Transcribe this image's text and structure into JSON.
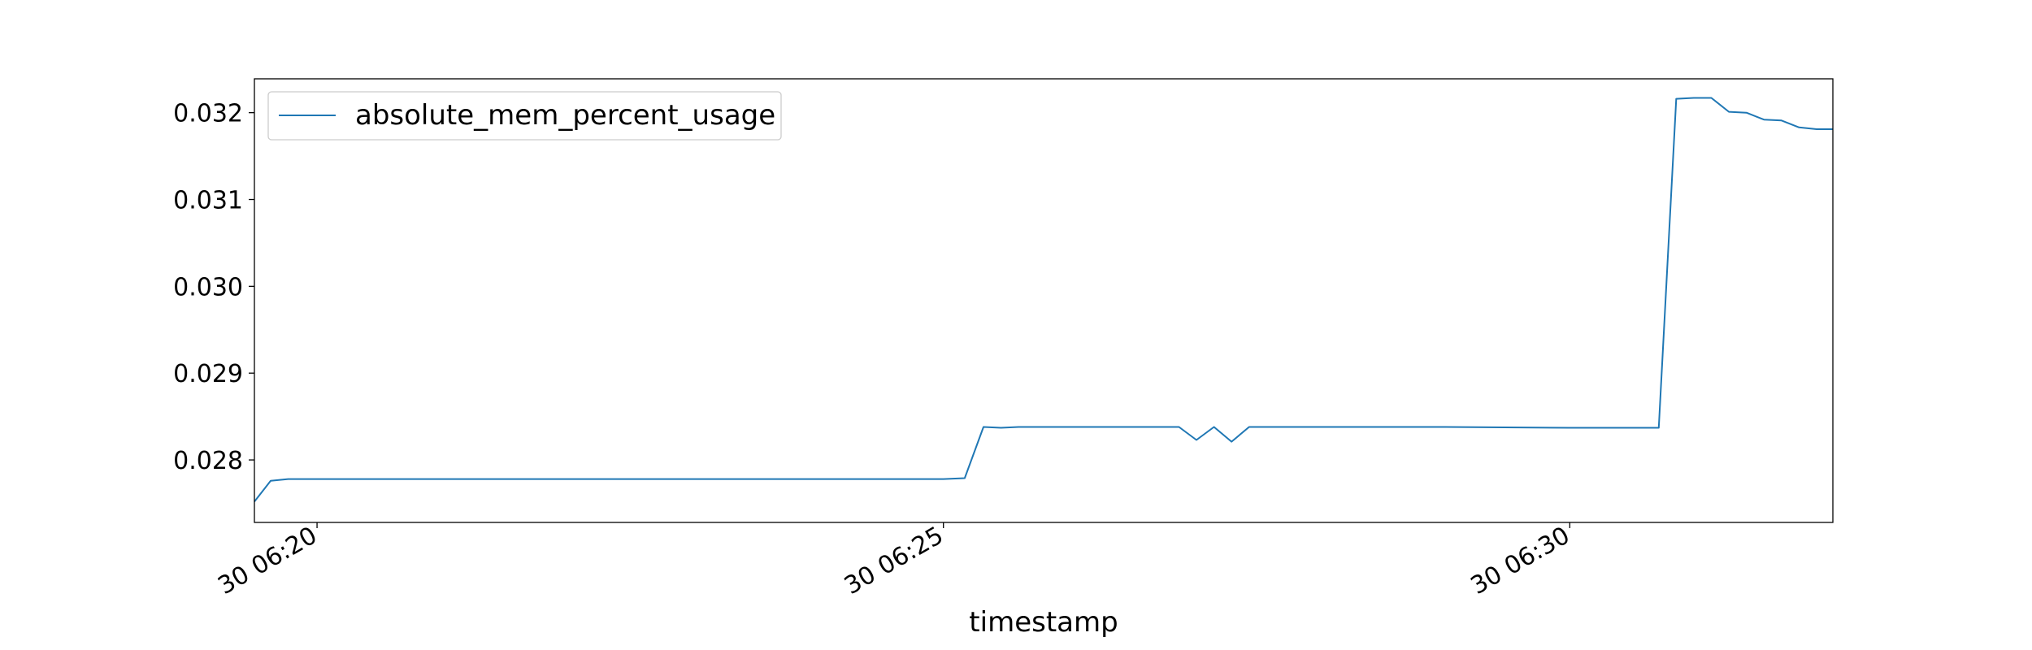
{
  "chart_data": {
    "type": "line",
    "title": "",
    "xlabel": "timestamp",
    "ylabel": "",
    "x_ticks": [
      {
        "label": "30 06:20",
        "minute": 20
      },
      {
        "label": "30 06:25",
        "minute": 25
      },
      {
        "label": "30 06:30",
        "minute": 30
      }
    ],
    "y_ticks": [
      {
        "label": "0.028",
        "value": 0.028
      },
      {
        "label": "0.029",
        "value": 0.029
      },
      {
        "label": "0.030",
        "value": 0.03
      },
      {
        "label": "0.031",
        "value": 0.031
      },
      {
        "label": "0.032",
        "value": 0.032
      }
    ],
    "xlim": [
      19.5,
      32.1
    ],
    "ylim": [
      0.02728,
      0.03239
    ],
    "grid": false,
    "legend_position": "upper-left",
    "series": [
      {
        "name": "absolute_mem_percent_usage",
        "color": "#1f77b4",
        "points": [
          [
            19.5,
            0.02752
          ],
          [
            19.63,
            0.02776
          ],
          [
            19.77,
            0.02778
          ],
          [
            19.9,
            0.02778
          ],
          [
            20.04,
            0.02778
          ],
          [
            21.0,
            0.02778
          ],
          [
            22.5,
            0.02778
          ],
          [
            24.0,
            0.02778
          ],
          [
            25.0,
            0.02778
          ],
          [
            25.17,
            0.02779
          ],
          [
            25.32,
            0.02838
          ],
          [
            25.46,
            0.02837
          ],
          [
            25.6,
            0.02838
          ],
          [
            25.74,
            0.02838
          ],
          [
            26.0,
            0.02838
          ],
          [
            26.5,
            0.02838
          ],
          [
            26.88,
            0.02838
          ],
          [
            27.02,
            0.02823
          ],
          [
            27.16,
            0.02838
          ],
          [
            27.3,
            0.02821
          ],
          [
            27.44,
            0.02838
          ],
          [
            27.6,
            0.02838
          ],
          [
            28.0,
            0.02838
          ],
          [
            29.0,
            0.02838
          ],
          [
            30.0,
            0.02837
          ],
          [
            30.5,
            0.02837
          ],
          [
            30.71,
            0.02837
          ],
          [
            30.85,
            0.03216
          ],
          [
            30.99,
            0.03217
          ],
          [
            31.13,
            0.03217
          ],
          [
            31.27,
            0.03201
          ],
          [
            31.41,
            0.032
          ],
          [
            31.55,
            0.03192
          ],
          [
            31.69,
            0.03191
          ],
          [
            31.83,
            0.03183
          ],
          [
            31.97,
            0.03181
          ],
          [
            32.1,
            0.03181
          ]
        ]
      }
    ]
  }
}
